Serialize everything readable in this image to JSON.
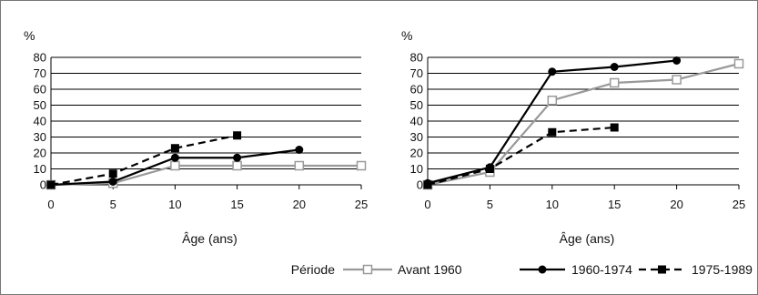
{
  "chart_data": [
    {
      "type": "line",
      "ylabel": "%",
      "xlabel": "Âge (ans)",
      "xlim": [
        0,
        25
      ],
      "ylim": [
        0,
        80
      ],
      "xticks": [
        0,
        5,
        10,
        15,
        20,
        25
      ],
      "yticks": [
        0,
        10,
        20,
        30,
        40,
        50,
        60,
        70,
        80
      ],
      "series": [
        {
          "name": "Avant 1960",
          "x": [
            0,
            5,
            10,
            15,
            20,
            25
          ],
          "values": [
            0,
            1,
            12,
            12,
            12,
            12
          ],
          "color": "#999999",
          "marker": "open-square",
          "dash": "solid"
        },
        {
          "name": "1960-1974",
          "x": [
            0,
            5,
            10,
            15,
            20
          ],
          "values": [
            0,
            2,
            17,
            17,
            22
          ],
          "color": "#000000",
          "marker": "filled-circle",
          "dash": "solid"
        },
        {
          "name": "1975-1989",
          "x": [
            0,
            5,
            10,
            15
          ],
          "values": [
            0,
            7,
            23,
            31
          ],
          "color": "#000000",
          "marker": "filled-square",
          "dash": "dashed"
        }
      ]
    },
    {
      "type": "line",
      "ylabel": "%",
      "xlabel": "Âge (ans)",
      "xlim": [
        0,
        25
      ],
      "ylim": [
        0,
        80
      ],
      "xticks": [
        0,
        5,
        10,
        15,
        20,
        25
      ],
      "yticks": [
        0,
        10,
        20,
        30,
        40,
        50,
        60,
        70,
        80
      ],
      "series": [
        {
          "name": "Avant 1960",
          "x": [
            0,
            5,
            10,
            15,
            20,
            25
          ],
          "values": [
            0,
            8,
            53,
            64,
            66,
            76
          ],
          "color": "#999999",
          "marker": "open-square",
          "dash": "solid"
        },
        {
          "name": "1960-1974",
          "x": [
            0,
            5,
            10,
            15,
            20
          ],
          "values": [
            1,
            11,
            71,
            74,
            78
          ],
          "color": "#000000",
          "marker": "filled-circle",
          "dash": "solid"
        },
        {
          "name": "1975-1989",
          "x": [
            0,
            5,
            10,
            15
          ],
          "values": [
            0,
            10,
            33,
            36
          ],
          "color": "#000000",
          "marker": "filled-square",
          "dash": "dashed"
        }
      ]
    }
  ],
  "legend": {
    "title": "Période",
    "items": [
      "Avant 1960",
      "1960-1974",
      "1975-1989"
    ]
  }
}
